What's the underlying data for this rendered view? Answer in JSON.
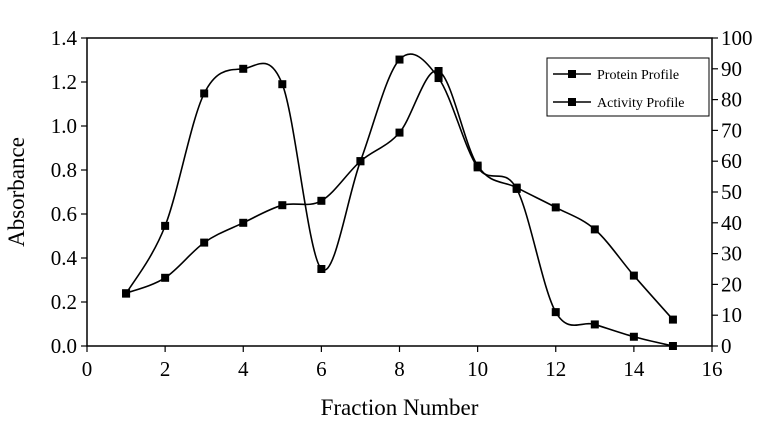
{
  "chart_data": {
    "type": "line",
    "title": "",
    "xlabel": "Fraction Number",
    "ylabel": "Absorbance",
    "y2label": "",
    "xlim": [
      0,
      16
    ],
    "ylim": [
      0.0,
      1.4
    ],
    "y2lim": [
      0,
      100
    ],
    "xticks": [
      "0",
      "2",
      "4",
      "6",
      "8",
      "10",
      "12",
      "14",
      "16"
    ],
    "yticks": [
      "0.0",
      "0.2",
      "0.4",
      "0.6",
      "0.8",
      "1.0",
      "1.2",
      "1.4"
    ],
    "y2ticks": [
      "0",
      "10",
      "20",
      "30",
      "40",
      "50",
      "60",
      "70",
      "80",
      "90",
      "100"
    ],
    "grid": false,
    "legend_position": "top-right",
    "series": [
      {
        "name": "Protein Profile",
        "axis": "left",
        "marker": "square",
        "x": [
          1,
          2,
          3,
          4,
          5,
          6,
          7,
          8,
          9,
          10,
          11,
          12,
          13,
          14,
          15
        ],
        "values": [
          0.24,
          0.31,
          0.47,
          0.56,
          0.64,
          0.66,
          0.84,
          0.97,
          1.25,
          0.82,
          0.72,
          0.63,
          0.53,
          0.32,
          0.12
        ]
      },
      {
        "name": "Activity Profile",
        "axis": "right",
        "marker": "square",
        "x": [
          1,
          2,
          3,
          4,
          5,
          6,
          7,
          8,
          9,
          10,
          11,
          12,
          13,
          14,
          15
        ],
        "values": [
          17,
          39,
          82,
          90,
          85,
          25,
          60,
          93,
          87,
          58,
          51,
          11,
          7,
          3,
          0
        ]
      }
    ]
  }
}
